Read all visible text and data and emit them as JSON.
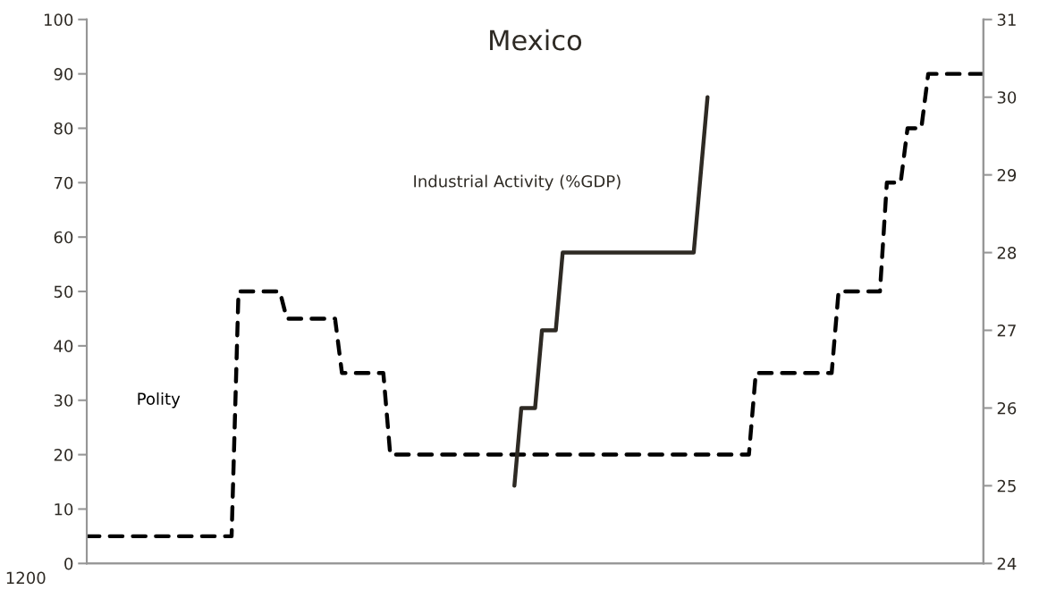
{
  "chart_data": {
    "type": "line",
    "title": "Mexico",
    "categories": [
      null,
      null,
      null,
      null,
      null,
      null,
      null,
      null,
      null,
      null,
      null,
      null,
      null,
      null,
      null,
      null,
      null,
      null,
      null,
      null,
      null,
      null,
      null,
      null,
      null,
      null,
      null,
      null,
      null,
      null,
      null,
      null,
      null,
      null,
      null,
      null,
      null,
      null,
      null,
      null,
      null,
      null,
      null,
      null,
      null,
      null,
      null,
      null,
      null,
      null,
      null,
      null,
      null,
      null,
      null,
      null,
      null,
      null,
      null,
      null,
      null,
      null,
      null,
      null,
      null,
      null,
      null,
      null,
      null,
      null,
      null,
      null,
      null,
      null,
      null,
      null,
      null,
      null,
      null,
      null,
      null,
      null,
      null,
      null,
      null,
      null,
      null,
      null,
      null,
      null,
      null,
      null,
      null,
      null,
      null,
      null,
      null,
      null,
      null,
      null,
      null,
      null,
      null,
      null,
      null,
      null,
      null,
      null,
      null,
      null,
      null,
      null,
      null,
      null,
      null,
      null,
      null,
      null,
      null,
      null,
      null,
      null,
      null,
      null,
      null,
      null,
      null,
      null,
      null,
      null,
      null
    ],
    "series": [
      {
        "name": "Polity",
        "color": "#000000",
        "line_style": "dashed",
        "values": [
          5,
          5,
          5,
          5,
          5,
          5,
          5,
          5,
          5,
          5,
          5,
          5,
          5,
          5,
          5,
          5,
          5,
          5,
          5,
          5,
          5,
          5,
          50,
          50,
          50,
          50,
          50,
          50,
          50,
          45,
          45,
          45,
          45,
          45,
          45,
          45,
          45,
          35,
          35,
          35,
          35,
          35,
          35,
          35,
          20,
          20,
          20,
          20,
          20,
          20,
          20,
          20,
          20,
          20,
          20,
          20,
          20,
          20,
          20,
          20,
          20,
          20,
          20,
          20,
          20,
          20,
          20,
          20,
          20,
          20,
          20,
          20,
          20,
          20,
          20,
          20,
          20,
          20,
          20,
          20,
          20,
          20,
          20,
          20,
          20,
          20,
          20,
          20,
          20,
          20,
          20,
          20,
          20,
          20,
          20,
          20,
          20,
          35,
          35,
          35,
          35,
          35,
          35,
          35,
          35,
          35,
          35,
          35,
          35,
          50,
          50,
          50,
          50,
          50,
          50,
          50,
          70,
          70,
          70,
          80,
          80,
          80,
          90,
          90,
          90,
          90,
          90,
          90,
          90,
          90,
          90
        ]
      },
      {
        "name": "Industrial Activity (%GDP)",
        "color": "#2e2a24",
        "line_style": "solid",
        "axis": "y2",
        "values": [
          null,
          null,
          null,
          null,
          null,
          null,
          null,
          null,
          null,
          null,
          null,
          null,
          null,
          null,
          null,
          null,
          null,
          null,
          null,
          null,
          null,
          null,
          null,
          null,
          null,
          null,
          null,
          null,
          null,
          null,
          null,
          null,
          null,
          null,
          null,
          null,
          null,
          null,
          null,
          null,
          null,
          null,
          null,
          null,
          null,
          null,
          null,
          null,
          null,
          null,
          null,
          null,
          null,
          null,
          null,
          null,
          null,
          null,
          null,
          null,
          null,
          null,
          25,
          26,
          26,
          26,
          27,
          27,
          27,
          28,
          28,
          28,
          28,
          28,
          28,
          28,
          28,
          28,
          28,
          28,
          28,
          28,
          28,
          28,
          28,
          28,
          28,
          28,
          28,
          29,
          30,
          null,
          null,
          null,
          null,
          null,
          null,
          null,
          null,
          null,
          null,
          null,
          null,
          null,
          null,
          null,
          null,
          null,
          null,
          null,
          null,
          null,
          null,
          null,
          null,
          null,
          null,
          null,
          null,
          null,
          null,
          null,
          null,
          null,
          null,
          null,
          null,
          null,
          null,
          null,
          null
        ]
      }
    ],
    "ylim": [
      0,
      100
    ],
    "yticks": [
      0,
      10,
      20,
      30,
      40,
      50,
      60,
      70,
      80,
      90,
      100
    ],
    "y2lim": [
      24,
      31
    ],
    "y2ticks": [
      24,
      25,
      26,
      27,
      28,
      29,
      30,
      31
    ],
    "annotations": [
      "1200"
    ],
    "grid": false,
    "legend": false,
    "marker": "none"
  }
}
